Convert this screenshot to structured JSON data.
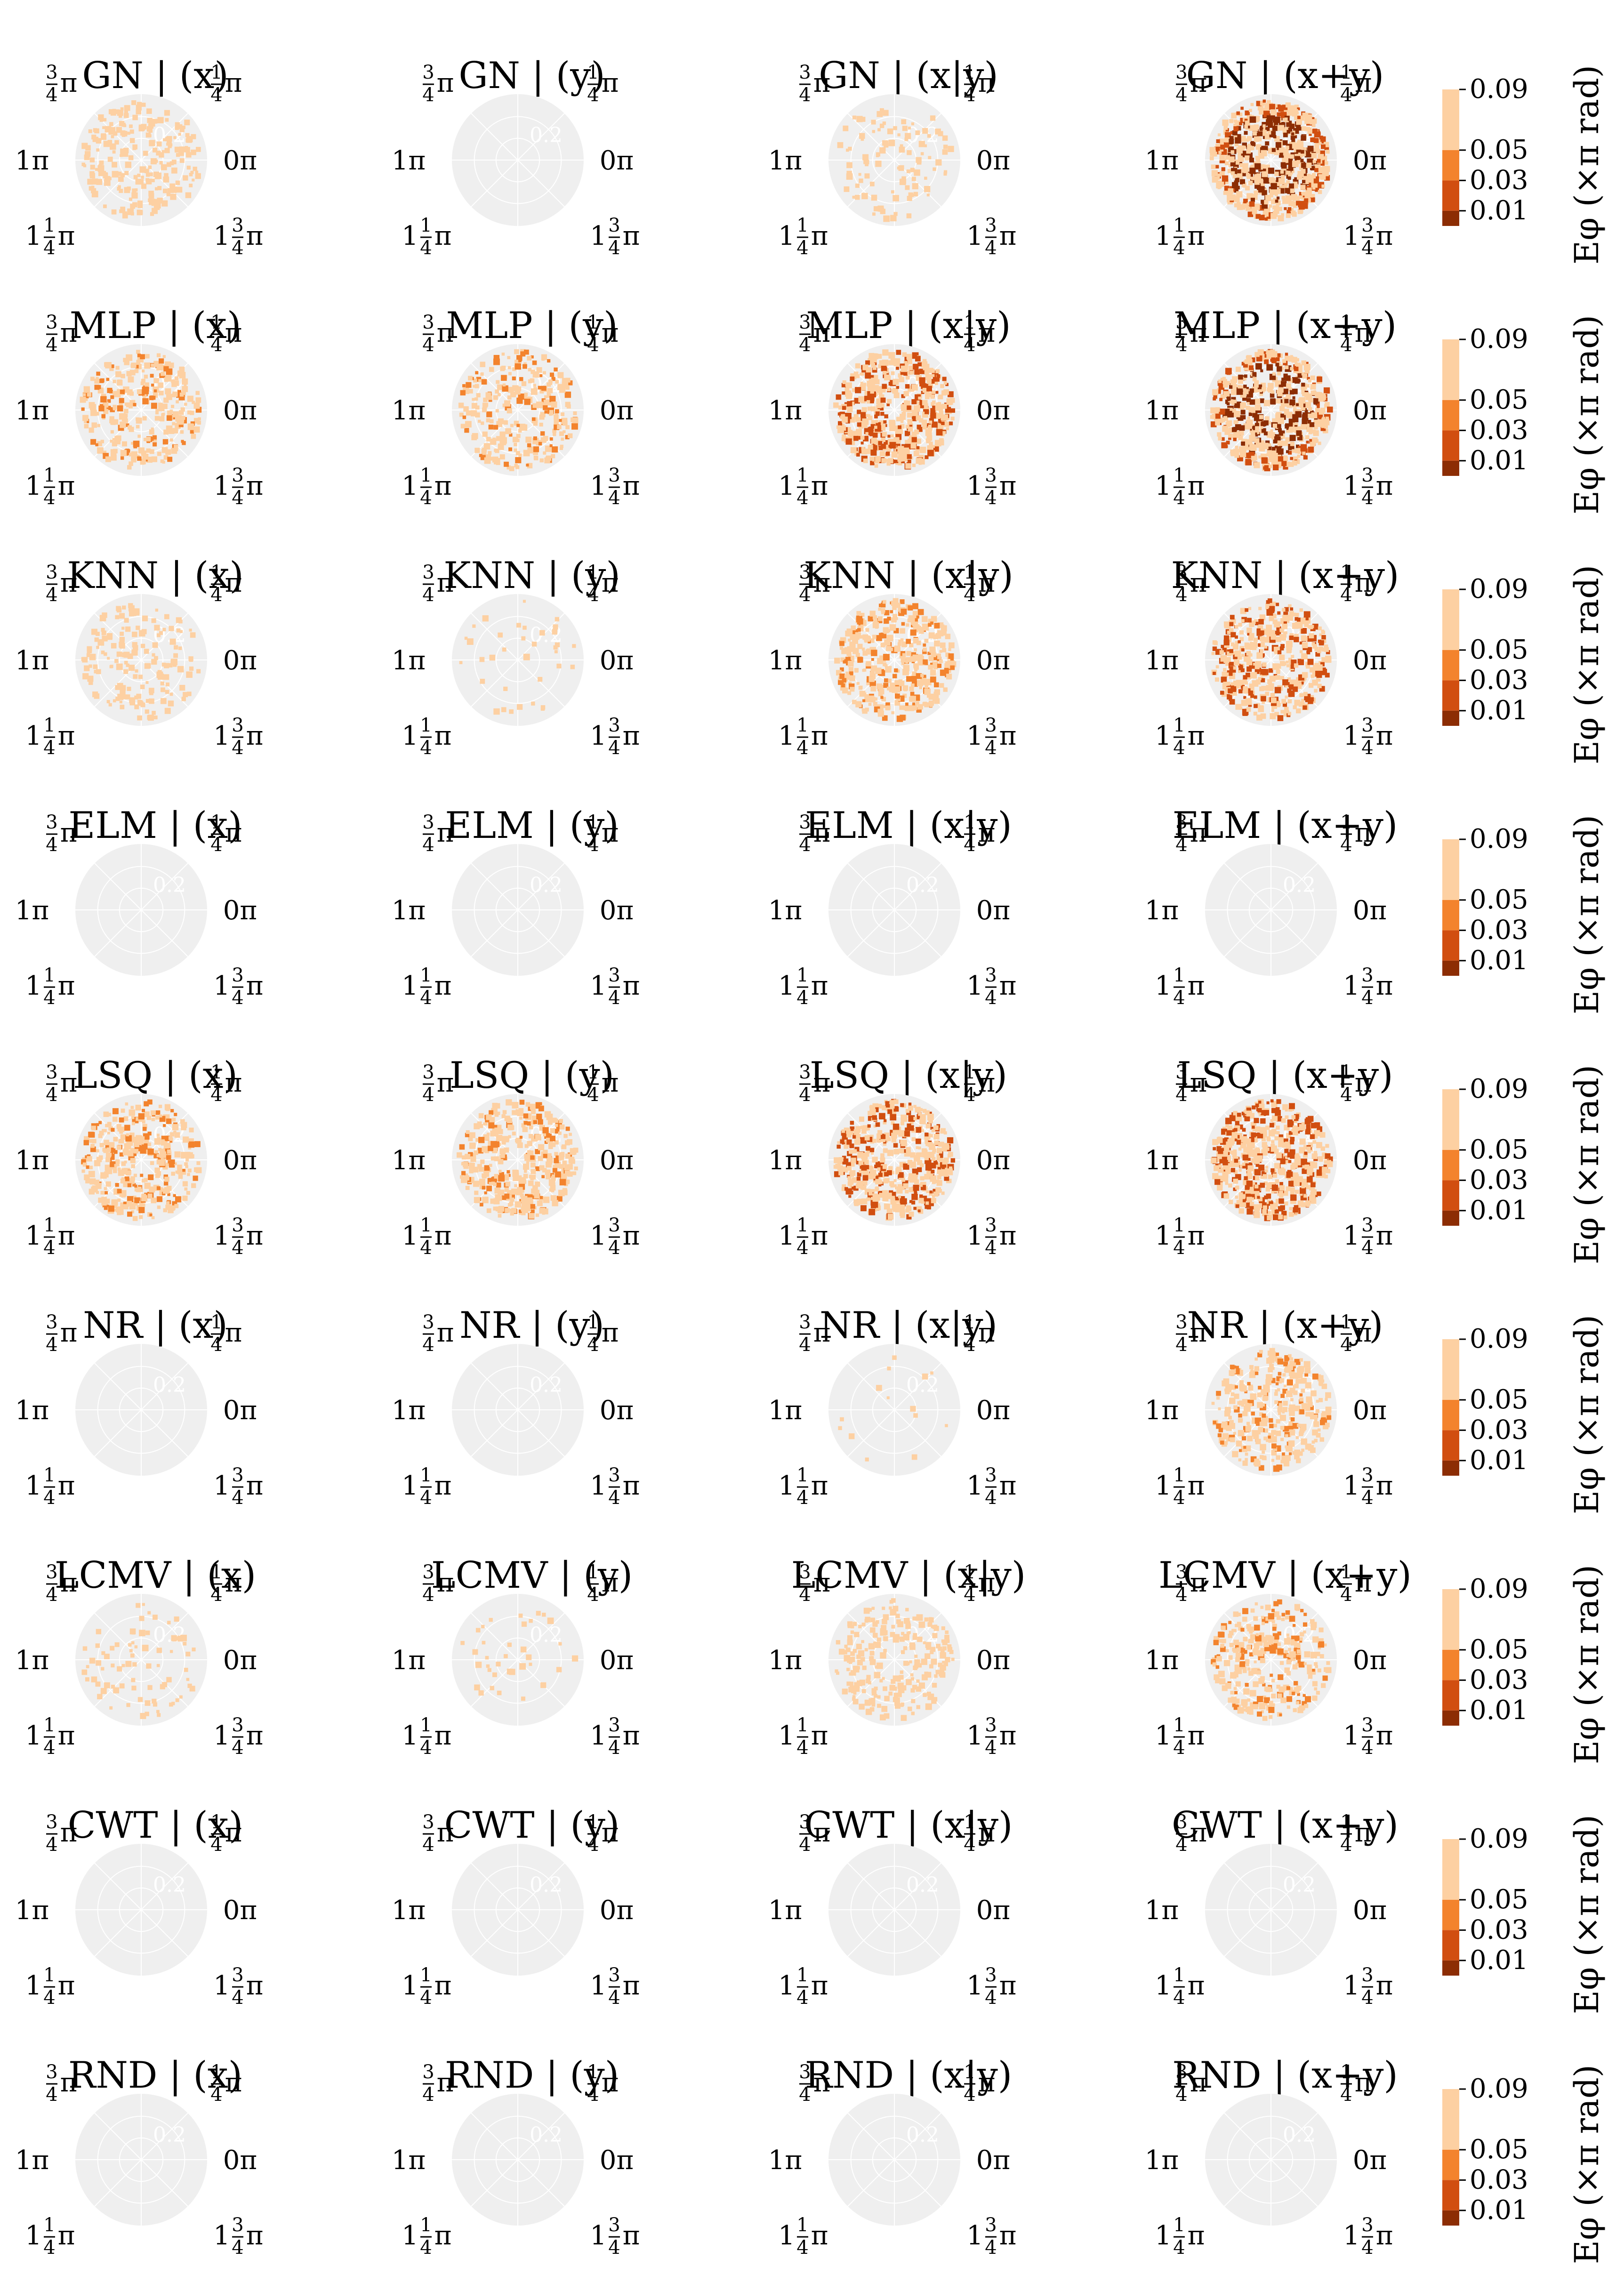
{
  "chart_data": {
    "type": "heatmap",
    "rows": [
      "GN",
      "MLP",
      "KNN",
      "ELM",
      "LSQ",
      "NR",
      "LCMV",
      "CWT",
      "RND"
    ],
    "columns": [
      "(x)",
      "(y)",
      "(x|y)",
      "(x+y)"
    ],
    "title_separator": " | ",
    "angular_ticks": [
      {
        "id": "3q",
        "lead": "",
        "num": "3",
        "den": "4",
        "tail": "π"
      },
      {
        "id": "1q",
        "lead": "",
        "num": "1",
        "den": "4",
        "tail": "π"
      },
      {
        "id": "1p",
        "lead": "1π",
        "num": "",
        "den": "",
        "tail": ""
      },
      {
        "id": "0p",
        "lead": "0π",
        "num": "",
        "den": "",
        "tail": ""
      },
      {
        "id": "5q",
        "lead": "1",
        "num": "1",
        "den": "4",
        "tail": "π"
      },
      {
        "id": "7q",
        "lead": "1",
        "num": "3",
        "den": "4",
        "tail": "π"
      }
    ],
    "radial_tick_label": "0.2",
    "colorbar": {
      "label": "Eφ (×π rad)",
      "ticks": [
        "0.09",
        "0.05",
        "0.03",
        "0.01"
      ],
      "bins": [
        {
          "range": [
            0.05,
            0.09
          ],
          "color": "#fdd0a2"
        },
        {
          "range": [
            0.03,
            0.05
          ],
          "color": "#f3832d"
        },
        {
          "range": [
            0.01,
            0.03
          ],
          "color": "#d14e10"
        },
        {
          "range": [
            0.0,
            0.01
          ],
          "color": "#8c2d04"
        }
      ]
    },
    "density": [
      [
        0.35,
        0.0,
        0.15,
        1.0
      ],
      [
        0.45,
        0.4,
        0.8,
        0.9
      ],
      [
        0.25,
        0.05,
        0.6,
        0.7
      ],
      [
        0.0,
        0.0,
        0.0,
        0.0
      ],
      [
        0.55,
        0.6,
        0.75,
        0.85
      ],
      [
        0.0,
        0.0,
        0.02,
        0.5
      ],
      [
        0.12,
        0.05,
        0.35,
        0.45
      ],
      [
        0.0,
        0.0,
        0.0,
        0.0
      ],
      [
        0.0,
        0.0,
        0.0,
        0.0
      ]
    ]
  },
  "colors": {
    "disk": "#efefef",
    "grid": "#ffffff"
  }
}
